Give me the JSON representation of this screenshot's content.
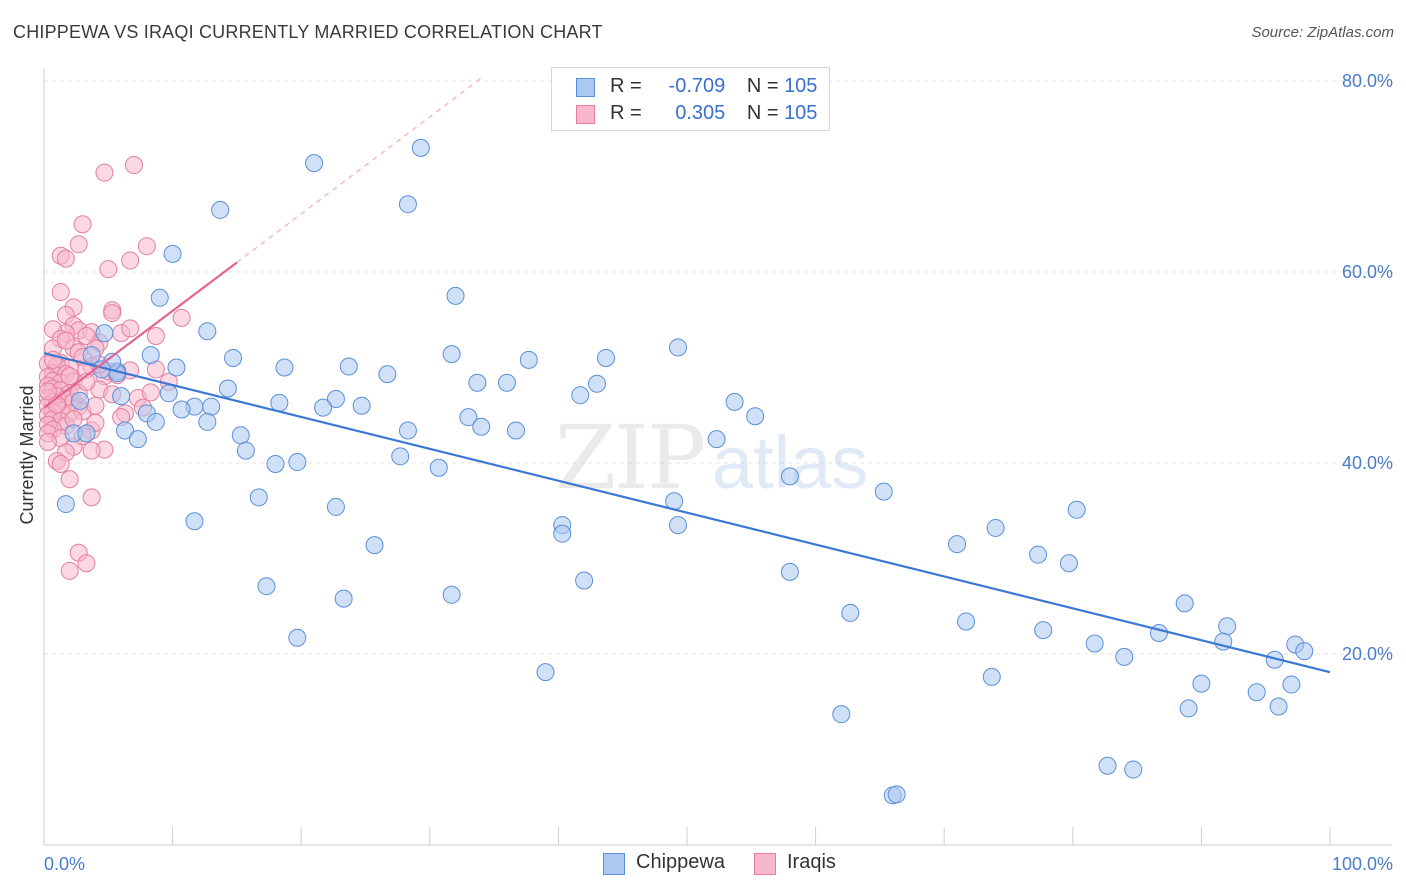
{
  "header": {
    "title": "CHIPPEWA VS IRAQI CURRENTLY MARRIED CORRELATION CHART",
    "source": "Source: ZipAtlas.com"
  },
  "legend": {
    "r_label": "R =",
    "n_label": "N =",
    "series": [
      {
        "name": "Chippewa",
        "r": "-0.709",
        "n": "105",
        "fill": "#aac8f0",
        "stroke": "#5b8fd9"
      },
      {
        "name": "Iraqis",
        "r": "0.305",
        "n": "105",
        "fill": "#f7b8cc",
        "stroke": "#e57fa0"
      }
    ]
  },
  "watermark": {
    "zip": "ZIP",
    "atlas": "atlas"
  },
  "chart_data": {
    "type": "scatter",
    "title": "CHIPPEWA VS IRAQI CURRENTLY MARRIED CORRELATION CHART",
    "xlabel": "",
    "ylabel": "Currently Married",
    "xlim": [
      0,
      100
    ],
    "ylim": [
      0,
      82
    ],
    "x_tick_labels": [
      "0.0%",
      "100.0%"
    ],
    "y_ticks": [
      20,
      40,
      60,
      80
    ],
    "y_tick_labels": [
      "20.0%",
      "40.0%",
      "60.0%",
      "80.0%"
    ],
    "grid": true,
    "series": [
      {
        "name": "Chippewa",
        "color": "#5b8fd9",
        "fill": "#aac8f0",
        "trend": {
          "x": [
            0,
            100
          ],
          "y": [
            51.5,
            18.1
          ]
        },
        "points": [
          [
            21.0,
            71.4
          ],
          [
            29.3,
            73.0
          ],
          [
            28.3,
            67.1
          ],
          [
            13.7,
            66.5
          ],
          [
            10.0,
            61.9
          ],
          [
            32.0,
            57.5
          ],
          [
            9.0,
            57.3
          ],
          [
            12.7,
            53.8
          ],
          [
            4.7,
            53.6
          ],
          [
            3.7,
            51.3
          ],
          [
            14.7,
            51.0
          ],
          [
            8.3,
            51.3
          ],
          [
            31.7,
            51.4
          ],
          [
            37.7,
            50.8
          ],
          [
            43.7,
            51.0
          ],
          [
            49.3,
            52.1
          ],
          [
            18.7,
            50.0
          ],
          [
            23.7,
            50.1
          ],
          [
            26.7,
            49.3
          ],
          [
            10.3,
            50.0
          ],
          [
            5.7,
            49.6
          ],
          [
            5.7,
            49.4
          ],
          [
            33.7,
            48.4
          ],
          [
            36.0,
            48.4
          ],
          [
            14.3,
            47.8
          ],
          [
            9.7,
            47.3
          ],
          [
            41.7,
            47.1
          ],
          [
            43.0,
            48.3
          ],
          [
            53.7,
            46.4
          ],
          [
            22.7,
            46.7
          ],
          [
            21.7,
            45.8
          ],
          [
            11.7,
            45.9
          ],
          [
            13.0,
            45.9
          ],
          [
            10.7,
            45.6
          ],
          [
            8.0,
            45.2
          ],
          [
            33.0,
            44.8
          ],
          [
            34.0,
            43.8
          ],
          [
            36.7,
            43.4
          ],
          [
            28.3,
            43.4
          ],
          [
            55.3,
            44.9
          ],
          [
            12.7,
            44.3
          ],
          [
            8.7,
            44.3
          ],
          [
            6.3,
            43.4
          ],
          [
            7.3,
            42.5
          ],
          [
            15.3,
            42.9
          ],
          [
            52.3,
            42.5
          ],
          [
            15.7,
            41.3
          ],
          [
            2.3,
            43.1
          ],
          [
            3.3,
            43.1
          ],
          [
            18.0,
            39.9
          ],
          [
            19.7,
            40.1
          ],
          [
            27.7,
            40.7
          ],
          [
            30.7,
            39.5
          ],
          [
            58.0,
            38.6
          ],
          [
            65.3,
            37.0
          ],
          [
            16.7,
            36.4
          ],
          [
            1.7,
            35.7
          ],
          [
            22.7,
            35.4
          ],
          [
            49.0,
            36.0
          ],
          [
            40.3,
            33.5
          ],
          [
            11.7,
            33.9
          ],
          [
            49.3,
            33.5
          ],
          [
            40.3,
            32.6
          ],
          [
            80.3,
            35.1
          ],
          [
            74.0,
            33.2
          ],
          [
            71.0,
            31.5
          ],
          [
            77.3,
            30.4
          ],
          [
            79.7,
            29.5
          ],
          [
            25.7,
            31.4
          ],
          [
            58.0,
            28.6
          ],
          [
            42.0,
            27.7
          ],
          [
            17.3,
            27.1
          ],
          [
            23.3,
            25.8
          ],
          [
            31.7,
            26.2
          ],
          [
            62.7,
            24.3
          ],
          [
            71.7,
            23.4
          ],
          [
            88.7,
            25.3
          ],
          [
            92.0,
            22.9
          ],
          [
            77.7,
            22.5
          ],
          [
            81.7,
            21.1
          ],
          [
            86.7,
            22.2
          ],
          [
            91.7,
            21.3
          ],
          [
            97.3,
            21.0
          ],
          [
            98.0,
            20.3
          ],
          [
            84.0,
            19.7
          ],
          [
            95.7,
            19.4
          ],
          [
            19.7,
            21.7
          ],
          [
            39.0,
            18.1
          ],
          [
            73.7,
            17.6
          ],
          [
            90.0,
            16.9
          ],
          [
            94.3,
            16.0
          ],
          [
            97.0,
            16.8
          ],
          [
            89.0,
            14.3
          ],
          [
            96.0,
            14.5
          ],
          [
            62.0,
            13.7
          ],
          [
            82.7,
            8.3
          ],
          [
            84.7,
            7.9
          ],
          [
            66.0,
            5.2
          ],
          [
            66.3,
            5.3
          ],
          [
            5.3,
            50.6
          ],
          [
            4.5,
            49.8
          ],
          [
            2.8,
            46.5
          ],
          [
            18.3,
            46.3
          ],
          [
            6.0,
            47.0
          ],
          [
            24.7,
            46.0
          ]
        ]
      },
      {
        "name": "Iraqis",
        "color": "#e57fa0",
        "fill": "#f7b8cc",
        "trend": {
          "x": [
            0,
            15
          ],
          "y": [
            45.8,
            61.0
          ],
          "dashed_to": {
            "x": [
              15,
              34
            ],
            "y": [
              61.0,
              80.3
            ]
          }
        },
        "points": [
          [
            7.0,
            71.2
          ],
          [
            4.7,
            70.4
          ],
          [
            3.0,
            65.0
          ],
          [
            2.7,
            62.9
          ],
          [
            8.0,
            62.7
          ],
          [
            1.3,
            61.7
          ],
          [
            6.7,
            61.2
          ],
          [
            5.0,
            60.3
          ],
          [
            1.7,
            61.4
          ],
          [
            1.3,
            57.9
          ],
          [
            2.3,
            56.3
          ],
          [
            5.3,
            56.0
          ],
          [
            5.3,
            55.7
          ],
          [
            1.7,
            55.5
          ],
          [
            10.7,
            55.2
          ],
          [
            2.3,
            54.4
          ],
          [
            2.7,
            53.9
          ],
          [
            1.7,
            53.6
          ],
          [
            0.7,
            54.0
          ],
          [
            3.7,
            53.7
          ],
          [
            1.3,
            53.0
          ],
          [
            4.3,
            52.6
          ],
          [
            8.7,
            53.3
          ],
          [
            0.7,
            52.0
          ],
          [
            2.3,
            52.0
          ],
          [
            2.7,
            51.6
          ],
          [
            3.0,
            51.1
          ],
          [
            1.3,
            50.5
          ],
          [
            3.7,
            50.1
          ],
          [
            2.0,
            50.0
          ],
          [
            0.3,
            50.4
          ],
          [
            1.0,
            50.2
          ],
          [
            3.3,
            49.8
          ],
          [
            0.7,
            49.4
          ],
          [
            1.7,
            49.3
          ],
          [
            4.7,
            49.1
          ],
          [
            0.3,
            49.0
          ],
          [
            0.7,
            48.6
          ],
          [
            1.3,
            48.4
          ],
          [
            2.3,
            48.5
          ],
          [
            8.7,
            49.8
          ],
          [
            0.3,
            48.1
          ],
          [
            0.7,
            47.8
          ],
          [
            1.3,
            47.6
          ],
          [
            2.0,
            47.3
          ],
          [
            1.0,
            47.0
          ],
          [
            0.3,
            46.8
          ],
          [
            1.7,
            46.7
          ],
          [
            0.7,
            46.4
          ],
          [
            2.3,
            46.4
          ],
          [
            0.3,
            46.0
          ],
          [
            1.0,
            45.8
          ],
          [
            2.7,
            45.9
          ],
          [
            1.3,
            45.5
          ],
          [
            0.7,
            45.3
          ],
          [
            0.3,
            45.0
          ],
          [
            2.0,
            45.2
          ],
          [
            0.7,
            44.6
          ],
          [
            1.3,
            44.4
          ],
          [
            0.3,
            44.0
          ],
          [
            1.7,
            43.9
          ],
          [
            0.7,
            43.5
          ],
          [
            0.3,
            43.1
          ],
          [
            3.7,
            43.4
          ],
          [
            1.3,
            42.6
          ],
          [
            0.3,
            42.2
          ],
          [
            2.3,
            41.7
          ],
          [
            4.7,
            41.4
          ],
          [
            1.7,
            41.1
          ],
          [
            1.0,
            40.2
          ],
          [
            1.3,
            39.9
          ],
          [
            2.0,
            38.3
          ],
          [
            3.7,
            36.4
          ],
          [
            2.7,
            30.6
          ],
          [
            3.3,
            29.5
          ],
          [
            2.0,
            28.7
          ],
          [
            5.0,
            49.6
          ],
          [
            6.7,
            49.7
          ],
          [
            7.3,
            46.8
          ],
          [
            7.7,
            45.8
          ],
          [
            6.3,
            45.2
          ],
          [
            9.7,
            48.5
          ],
          [
            5.7,
            49.2
          ],
          [
            4.3,
            47.7
          ],
          [
            6.0,
            53.6
          ],
          [
            3.3,
            53.3
          ],
          [
            4.0,
            52.0
          ],
          [
            5.3,
            47.2
          ],
          [
            8.3,
            47.4
          ],
          [
            2.7,
            47.3
          ],
          [
            3.0,
            45.4
          ],
          [
            4.0,
            44.2
          ],
          [
            3.0,
            42.8
          ],
          [
            0.7,
            50.8
          ],
          [
            2.0,
            49.1
          ],
          [
            1.0,
            46.1
          ],
          [
            3.3,
            48.5
          ],
          [
            4.3,
            50.3
          ],
          [
            6.7,
            54.1
          ],
          [
            2.3,
            44.6
          ],
          [
            1.7,
            52.8
          ],
          [
            0.3,
            47.5
          ],
          [
            4.0,
            46.0
          ],
          [
            6.0,
            44.8
          ],
          [
            3.7,
            41.3
          ]
        ]
      }
    ]
  }
}
